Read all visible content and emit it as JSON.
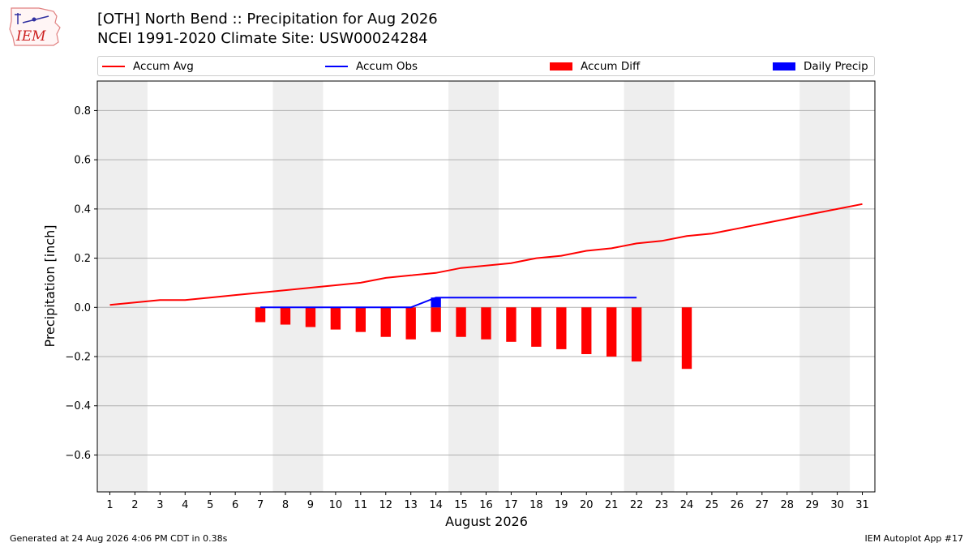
{
  "header": {
    "title_line1": "[OTH] North Bend :: Precipitation for Aug 2026",
    "title_line2": "NCEI 1991-2020 Climate Site: USW00024284",
    "logo_text": "IEM"
  },
  "footer": {
    "generated": "Generated at 24 Aug 2026 4:06 PM CDT in 0.38s",
    "app": "IEM Autoplot App #17"
  },
  "chart_data": {
    "type": "bar",
    "xlabel": "August 2026",
    "ylabel": "Precipitation [inch]",
    "xlim": [
      0.5,
      31.5
    ],
    "ylim": [
      -0.75,
      0.92
    ],
    "yticks": [
      -0.6,
      -0.4,
      -0.2,
      0.0,
      0.2,
      0.4,
      0.6,
      0.8
    ],
    "ytick_labels": [
      "−0.6",
      "−0.4",
      "−0.2",
      "0.0",
      "0.2",
      "0.4",
      "0.6",
      "0.8"
    ],
    "xticks": [
      1,
      2,
      3,
      4,
      5,
      6,
      7,
      8,
      9,
      10,
      11,
      12,
      13,
      14,
      15,
      16,
      17,
      18,
      19,
      20,
      21,
      22,
      23,
      24,
      25,
      26,
      27,
      28,
      29,
      30,
      31
    ],
    "grid": "horizontal",
    "legend_position": "top",
    "weekend_bands": [
      [
        1,
        2
      ],
      [
        8,
        9
      ],
      [
        15,
        16
      ],
      [
        22,
        23
      ],
      [
        29,
        30
      ]
    ],
    "colors": {
      "accum_avg": "#ff0000",
      "accum_obs": "#0000ff",
      "accum_diff": "#ff0000",
      "daily_precip": "#0000ff",
      "band": "#eeeeee",
      "grid": "#b0b0b0"
    },
    "series": [
      {
        "name": "Accum Avg",
        "kind": "line",
        "x": [
          1,
          2,
          3,
          4,
          5,
          6,
          7,
          8,
          9,
          10,
          11,
          12,
          13,
          14,
          15,
          16,
          17,
          18,
          19,
          20,
          21,
          22,
          23,
          24,
          25,
          26,
          27,
          28,
          29,
          30,
          31
        ],
        "values": [
          0.01,
          0.02,
          0.03,
          0.03,
          0.04,
          0.05,
          0.06,
          0.07,
          0.08,
          0.09,
          0.1,
          0.12,
          0.13,
          0.14,
          0.16,
          0.17,
          0.18,
          0.2,
          0.21,
          0.23,
          0.24,
          0.26,
          0.27,
          0.29,
          0.3,
          0.32,
          0.34,
          0.36,
          0.38,
          0.4,
          0.42
        ]
      },
      {
        "name": "Accum Obs",
        "kind": "line",
        "x": [
          7,
          8,
          9,
          10,
          11,
          12,
          13,
          14,
          15,
          16,
          17,
          18,
          19,
          20,
          21,
          22
        ],
        "values": [
          0.0,
          0.0,
          0.0,
          0.0,
          0.0,
          0.0,
          0.0,
          0.04,
          0.04,
          0.04,
          0.04,
          0.04,
          0.04,
          0.04,
          0.04,
          0.04
        ]
      },
      {
        "name": "Accum Diff",
        "kind": "bar",
        "x": [
          7,
          8,
          9,
          10,
          11,
          12,
          13,
          14,
          15,
          16,
          17,
          18,
          19,
          20,
          21,
          22,
          24
        ],
        "values": [
          -0.06,
          -0.07,
          -0.08,
          -0.09,
          -0.1,
          -0.12,
          -0.13,
          -0.1,
          -0.12,
          -0.13,
          -0.14,
          -0.16,
          -0.17,
          -0.19,
          -0.2,
          -0.22,
          -0.25
        ]
      },
      {
        "name": "Daily Precip",
        "kind": "bar",
        "x": [
          14
        ],
        "values": [
          0.04
        ]
      }
    ]
  }
}
